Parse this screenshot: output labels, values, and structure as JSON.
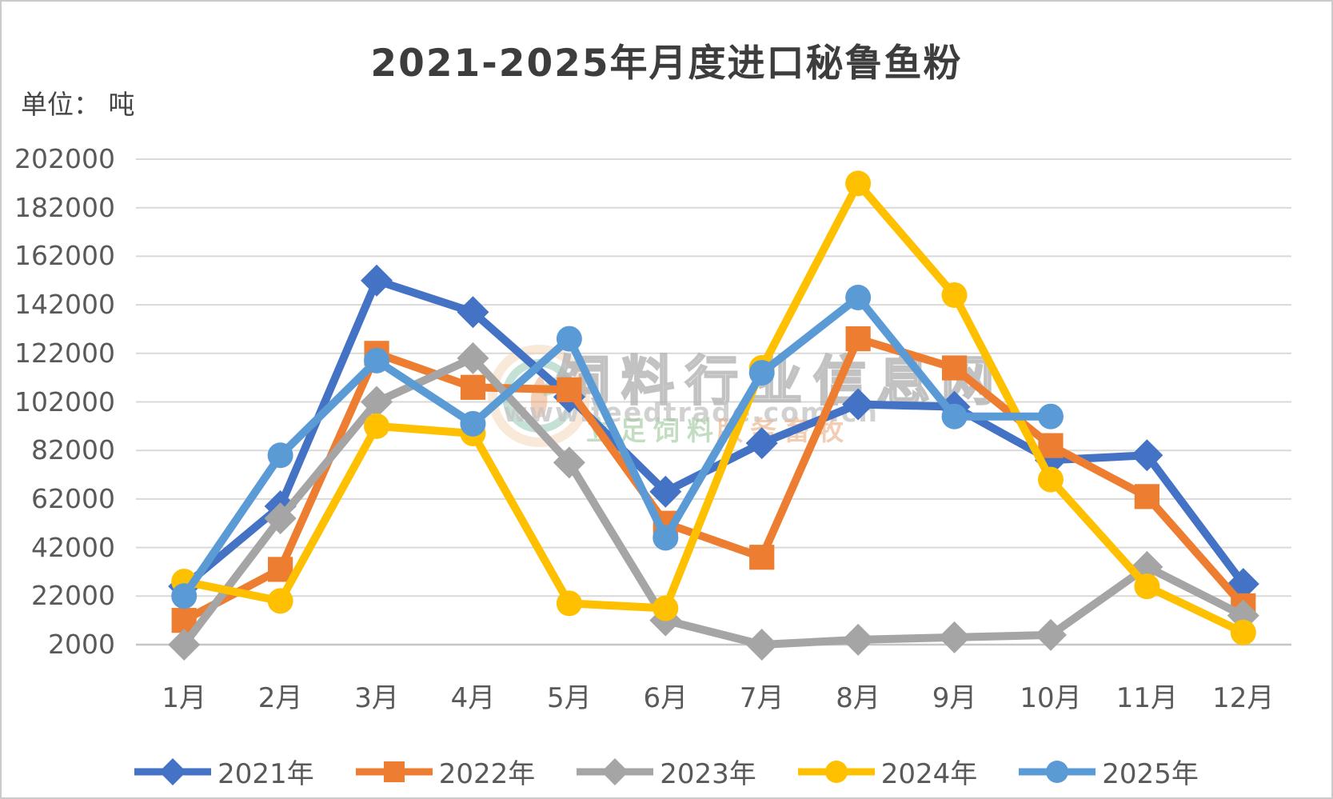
{
  "title": "2021-2025年月度进口秘鲁鱼粉",
  "unit_label": "单位：  吨",
  "watermark": {
    "site_name": "饲料行业信息网",
    "site_url": "www.feedtrade.com.cn",
    "slogan_left": "立足饲料",
    "slogan_right": "服务畜牧"
  },
  "colors": {
    "gridline": "#d9d9d9",
    "axis_line": "#c6c6c6",
    "axis_text": "#595959",
    "title_text": "#3d3d3d"
  },
  "chart_data": {
    "type": "line",
    "title": "2021-2025年月度进口秘鲁鱼粉",
    "unit": "吨",
    "categories": [
      "1月",
      "2月",
      "3月",
      "4月",
      "5月",
      "6月",
      "7月",
      "8月",
      "9月",
      "10月",
      "11月",
      "12月"
    ],
    "y_axis": {
      "min": 2000,
      "max": 202000,
      "step": 20000,
      "tick_labels": [
        "202000",
        "182000",
        "162000",
        "142000",
        "122000",
        "102000",
        "82000",
        "62000",
        "42000",
        "22000",
        "2000"
      ]
    },
    "grid": true,
    "legend_position": "bottom",
    "series": [
      {
        "name": "2021年",
        "color": "#4472C4",
        "marker": "diamond",
        "values": [
          26000,
          59000,
          152000,
          139000,
          104000,
          65000,
          85000,
          101000,
          100000,
          78000,
          80000,
          27000
        ]
      },
      {
        "name": "2022年",
        "color": "#ED7D31",
        "marker": "square",
        "values": [
          12000,
          33000,
          122000,
          108000,
          107000,
          52000,
          38000,
          128000,
          116000,
          84000,
          63000,
          18000
        ]
      },
      {
        "name": "2023年",
        "color": "#A5A5A5",
        "marker": "diamond",
        "values": [
          2000,
          54000,
          102000,
          120000,
          77000,
          12000,
          2000,
          4000,
          5000,
          6000,
          34000,
          14000
        ]
      },
      {
        "name": "2024年",
        "color": "#FFC000",
        "marker": "circle",
        "values": [
          28000,
          20000,
          92000,
          89000,
          19000,
          17000,
          116000,
          192000,
          146000,
          70000,
          26000,
          7000
        ]
      },
      {
        "name": "2025年",
        "color": "#5B9BD5",
        "marker": "circle",
        "values": [
          22000,
          80000,
          119000,
          93000,
          128000,
          46000,
          114000,
          145000,
          96000,
          96000
        ]
      }
    ]
  }
}
